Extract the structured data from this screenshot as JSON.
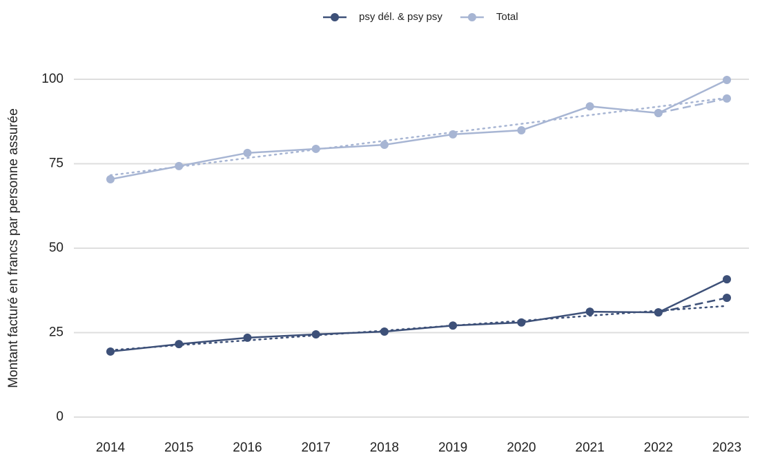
{
  "chart_data": {
    "type": "line",
    "y_label": "Montant facturé en francs par personne assurée",
    "categories": [
      "2014",
      "2015",
      "2016",
      "2017",
      "2018",
      "2019",
      "2020",
      "2021",
      "2022",
      "2023"
    ],
    "series": [
      {
        "name": "psy dél. & psy psy",
        "color": "#3d5078",
        "dash": "solid",
        "markers": true,
        "values": [
          19.4,
          21.6,
          23.5,
          24.5,
          25.3,
          27.1,
          28.0,
          31.2,
          31.0,
          40.8
        ]
      },
      {
        "name": "Total",
        "color": "#a7b5d3",
        "dash": "solid",
        "markers": true,
        "values": [
          70.4,
          74.3,
          78.2,
          79.4,
          80.6,
          83.7,
          84.9,
          92.0,
          90.0,
          99.8
        ]
      },
      {
        "color": "#3d5078",
        "dash": "dashed",
        "markers": true,
        "values": [
          null,
          null,
          null,
          null,
          null,
          null,
          null,
          null,
          31.0,
          35.3
        ]
      },
      {
        "color": "#a7b5d3",
        "dash": "dashed",
        "markers": true,
        "values": [
          null,
          null,
          null,
          null,
          null,
          null,
          null,
          null,
          90.0,
          94.3
        ]
      },
      {
        "color": "#3d5078",
        "dash": "dotted",
        "markers": false,
        "values": [
          19.8,
          21.3,
          22.7,
          24.2,
          25.6,
          27.1,
          28.5,
          30.0,
          31.5,
          32.9
        ]
      },
      {
        "color": "#a7b5d3",
        "dash": "dotted",
        "markers": false,
        "values": [
          71.6,
          74.1,
          76.7,
          79.2,
          81.8,
          84.3,
          86.8,
          89.4,
          91.9,
          94.5
        ]
      }
    ],
    "ylim": [
      0,
      100
    ],
    "yticks": [
      0,
      25,
      50,
      75,
      100
    ],
    "grid": true,
    "legend": "top"
  }
}
